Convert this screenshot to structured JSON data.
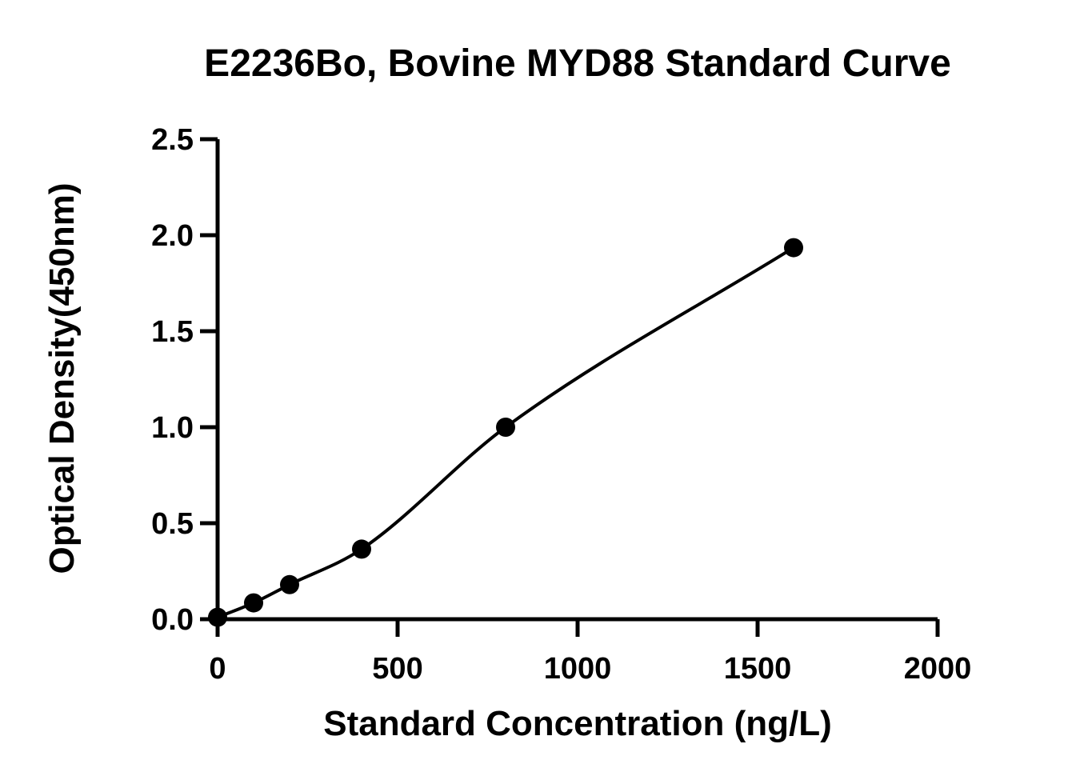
{
  "chart_data": {
    "type": "scatter",
    "title": "E2236Bo, Bovine MYD88 Standard Curve",
    "xlabel": "Standard Concentration (ng/L)",
    "ylabel": "Optical Density(450nm)",
    "xlim": [
      0,
      2000
    ],
    "ylim": [
      0,
      2.5
    ],
    "x_ticks": [
      "0",
      "500",
      "1000",
      "1500",
      "2000"
    ],
    "y_ticks": [
      "0.0",
      "0.5",
      "1.0",
      "1.5",
      "2.0",
      "2.5"
    ],
    "grid": false,
    "legend": "none",
    "series": [
      {
        "x": [
          0,
          100,
          200,
          400,
          800,
          1600
        ],
        "y": [
          0.01,
          0.085,
          0.18,
          0.365,
          1.0,
          1.935
        ],
        "marker": "circle",
        "fit_curve": true
      }
    ],
    "colors": {
      "marker": "#000000",
      "curve": "#000000",
      "axes": "#000000"
    }
  }
}
